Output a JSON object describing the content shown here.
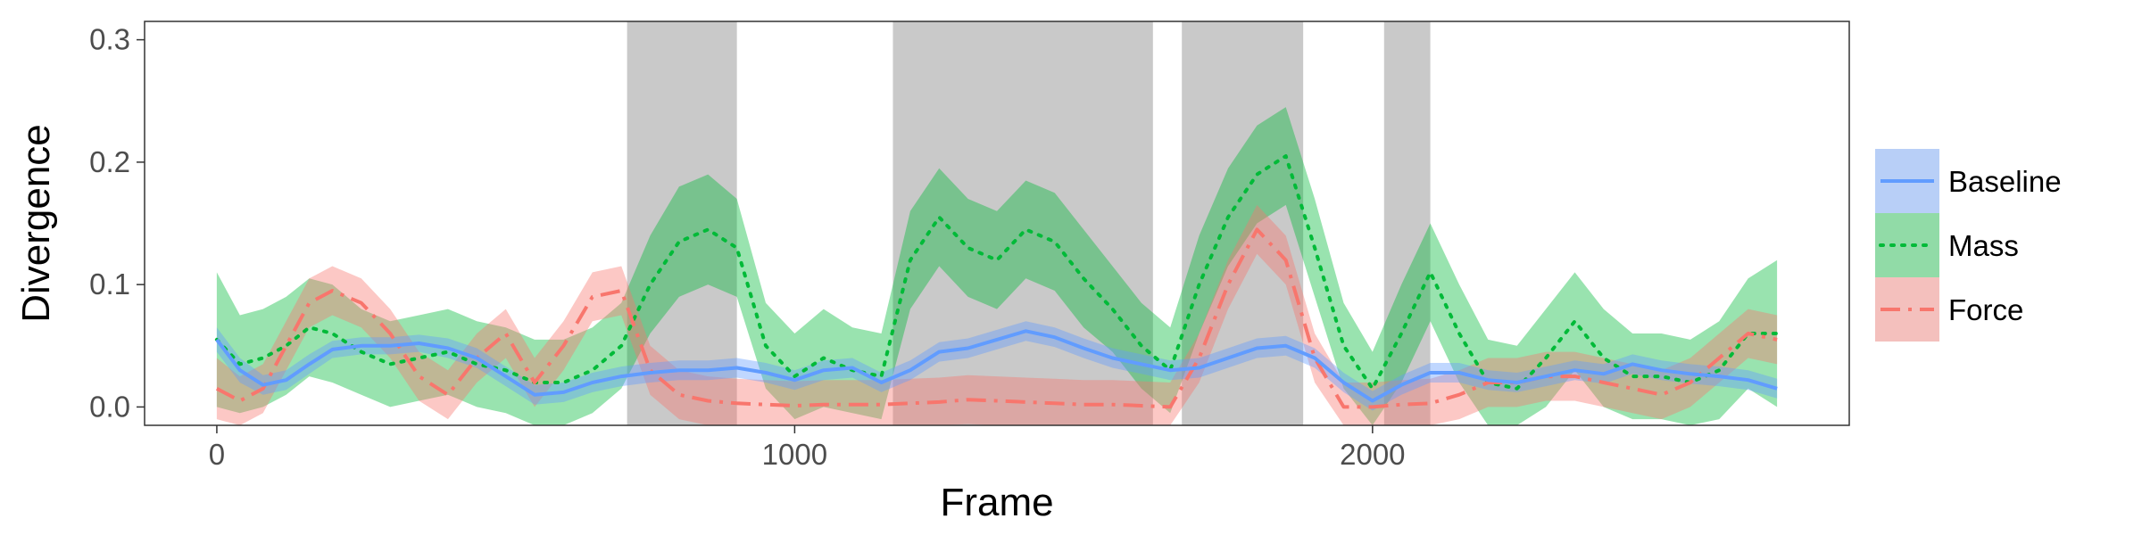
{
  "chart_data": {
    "type": "line",
    "xlabel": "Frame",
    "ylabel": "Divergence",
    "xlim": [
      -125,
      2825
    ],
    "ylim": [
      -0.015,
      0.315
    ],
    "x_ticks": [
      0,
      1000,
      2000
    ],
    "x_tick_labels": [
      "0",
      "1000",
      "2000"
    ],
    "y_ticks": [
      0.0,
      0.1,
      0.2,
      0.3
    ],
    "y_tick_labels": [
      "0.0",
      "0.1",
      "0.2",
      "0.3"
    ],
    "grid": false,
    "legend_position": "right",
    "shaded_regions": [
      [
        710,
        900
      ],
      [
        1170,
        1620
      ],
      [
        1670,
        1880
      ],
      [
        2020,
        2100
      ]
    ],
    "series": [
      {
        "name": "Baseline",
        "color": "#619cff",
        "dash": "solid",
        "x": [
          0,
          40,
          80,
          120,
          160,
          200,
          250,
          300,
          350,
          400,
          450,
          500,
          550,
          600,
          650,
          700,
          750,
          800,
          850,
          900,
          950,
          1000,
          1050,
          1100,
          1150,
          1200,
          1250,
          1300,
          1350,
          1400,
          1450,
          1500,
          1550,
          1600,
          1650,
          1700,
          1750,
          1800,
          1850,
          1900,
          1950,
          2000,
          2050,
          2100,
          2150,
          2200,
          2250,
          2300,
          2350,
          2400,
          2450,
          2500,
          2550,
          2600,
          2650,
          2700
        ],
        "y": [
          0.055,
          0.03,
          0.018,
          0.022,
          0.035,
          0.047,
          0.05,
          0.05,
          0.052,
          0.048,
          0.04,
          0.025,
          0.01,
          0.012,
          0.02,
          0.025,
          0.028,
          0.03,
          0.03,
          0.032,
          0.028,
          0.022,
          0.03,
          0.032,
          0.02,
          0.03,
          0.045,
          0.048,
          0.055,
          0.062,
          0.057,
          0.048,
          0.04,
          0.035,
          0.03,
          0.032,
          0.04,
          0.048,
          0.05,
          0.04,
          0.02,
          0.005,
          0.018,
          0.028,
          0.028,
          0.022,
          0.02,
          0.025,
          0.03,
          0.027,
          0.035,
          0.03,
          0.027,
          0.025,
          0.022,
          0.015
        ],
        "lower": [
          0.045,
          0.02,
          0.01,
          0.014,
          0.027,
          0.04,
          0.043,
          0.043,
          0.045,
          0.04,
          0.032,
          0.017,
          0.002,
          0.004,
          0.012,
          0.017,
          0.02,
          0.022,
          0.022,
          0.024,
          0.02,
          0.014,
          0.022,
          0.024,
          0.012,
          0.022,
          0.037,
          0.04,
          0.047,
          0.054,
          0.049,
          0.04,
          0.032,
          0.027,
          0.022,
          0.024,
          0.032,
          0.04,
          0.042,
          0.032,
          0.012,
          -0.003,
          0.01,
          0.02,
          0.02,
          0.014,
          0.012,
          0.017,
          0.022,
          0.019,
          0.027,
          0.022,
          0.019,
          0.017,
          0.014,
          0.007
        ],
        "upper": [
          0.065,
          0.04,
          0.026,
          0.03,
          0.043,
          0.054,
          0.057,
          0.057,
          0.059,
          0.056,
          0.048,
          0.033,
          0.018,
          0.02,
          0.028,
          0.033,
          0.036,
          0.038,
          0.038,
          0.04,
          0.036,
          0.03,
          0.038,
          0.04,
          0.028,
          0.038,
          0.053,
          0.056,
          0.063,
          0.07,
          0.065,
          0.056,
          0.048,
          0.043,
          0.038,
          0.04,
          0.048,
          0.056,
          0.058,
          0.048,
          0.028,
          0.013,
          0.026,
          0.036,
          0.036,
          0.03,
          0.028,
          0.033,
          0.038,
          0.035,
          0.043,
          0.038,
          0.035,
          0.033,
          0.03,
          0.023
        ]
      },
      {
        "name": "Mass",
        "color": "#00ba38",
        "dash": "dotted",
        "x": [
          0,
          40,
          80,
          120,
          160,
          200,
          250,
          300,
          350,
          400,
          450,
          500,
          550,
          600,
          650,
          700,
          750,
          800,
          850,
          900,
          950,
          1000,
          1050,
          1100,
          1150,
          1200,
          1250,
          1300,
          1350,
          1400,
          1450,
          1500,
          1550,
          1600,
          1650,
          1700,
          1750,
          1800,
          1850,
          1900,
          1950,
          2000,
          2050,
          2100,
          2150,
          2200,
          2250,
          2300,
          2350,
          2400,
          2450,
          2500,
          2550,
          2600,
          2650,
          2700
        ],
        "y": [
          0.055,
          0.035,
          0.04,
          0.05,
          0.065,
          0.06,
          0.045,
          0.035,
          0.04,
          0.045,
          0.035,
          0.03,
          0.02,
          0.02,
          0.03,
          0.05,
          0.1,
          0.135,
          0.145,
          0.13,
          0.05,
          0.025,
          0.04,
          0.03,
          0.025,
          0.12,
          0.155,
          0.13,
          0.12,
          0.145,
          0.135,
          0.105,
          0.08,
          0.05,
          0.03,
          0.1,
          0.155,
          0.19,
          0.205,
          0.13,
          0.05,
          0.015,
          0.06,
          0.11,
          0.06,
          0.02,
          0.015,
          0.04,
          0.07,
          0.04,
          0.025,
          0.025,
          0.02,
          0.03,
          0.06,
          0.06
        ],
        "lower": [
          0.0,
          -0.005,
          0.0,
          0.01,
          0.025,
          0.02,
          0.01,
          0.0,
          0.005,
          0.01,
          0.0,
          -0.005,
          -0.015,
          -0.015,
          -0.005,
          0.015,
          0.06,
          0.09,
          0.1,
          0.09,
          0.015,
          -0.01,
          0.0,
          -0.005,
          -0.01,
          0.08,
          0.115,
          0.09,
          0.08,
          0.105,
          0.095,
          0.065,
          0.045,
          0.015,
          -0.005,
          0.06,
          0.115,
          0.15,
          0.165,
          0.09,
          0.015,
          -0.015,
          0.02,
          0.07,
          0.02,
          -0.015,
          -0.02,
          0.0,
          0.03,
          0.0,
          -0.01,
          -0.01,
          -0.015,
          -0.01,
          0.015,
          0.0
        ],
        "upper": [
          0.11,
          0.075,
          0.08,
          0.09,
          0.105,
          0.1,
          0.08,
          0.07,
          0.075,
          0.08,
          0.07,
          0.065,
          0.055,
          0.055,
          0.065,
          0.085,
          0.14,
          0.18,
          0.19,
          0.17,
          0.085,
          0.06,
          0.08,
          0.065,
          0.06,
          0.16,
          0.195,
          0.17,
          0.16,
          0.185,
          0.175,
          0.145,
          0.115,
          0.085,
          0.065,
          0.14,
          0.195,
          0.23,
          0.245,
          0.17,
          0.085,
          0.045,
          0.1,
          0.15,
          0.1,
          0.055,
          0.05,
          0.08,
          0.11,
          0.08,
          0.06,
          0.06,
          0.055,
          0.07,
          0.105,
          0.12
        ]
      },
      {
        "name": "Force",
        "color": "#f8766d",
        "dash": "dashdot",
        "x": [
          0,
          40,
          80,
          120,
          160,
          200,
          250,
          300,
          350,
          400,
          450,
          500,
          550,
          600,
          650,
          700,
          750,
          800,
          850,
          900,
          950,
          1000,
          1050,
          1100,
          1150,
          1200,
          1250,
          1300,
          1350,
          1400,
          1450,
          1500,
          1550,
          1600,
          1650,
          1700,
          1750,
          1800,
          1850,
          1900,
          1950,
          2000,
          2050,
          2100,
          2150,
          2200,
          2250,
          2300,
          2350,
          2400,
          2450,
          2500,
          2550,
          2600,
          2650,
          2700
        ],
        "y": [
          0.015,
          0.005,
          0.015,
          0.05,
          0.085,
          0.095,
          0.085,
          0.06,
          0.025,
          0.01,
          0.04,
          0.06,
          0.02,
          0.05,
          0.09,
          0.095,
          0.03,
          0.01,
          0.005,
          0.003,
          0.002,
          0.001,
          0.002,
          0.002,
          0.002,
          0.003,
          0.004,
          0.006,
          0.005,
          0.004,
          0.003,
          0.002,
          0.002,
          0.001,
          0.0,
          0.04,
          0.1,
          0.145,
          0.12,
          0.04,
          0.0,
          0.0,
          0.002,
          0.003,
          0.01,
          0.02,
          0.02,
          0.025,
          0.025,
          0.02,
          0.015,
          0.01,
          0.02,
          0.04,
          0.06,
          0.055
        ],
        "lower": [
          -0.01,
          -0.015,
          -0.005,
          0.03,
          0.065,
          0.075,
          0.065,
          0.04,
          0.005,
          -0.01,
          0.02,
          0.04,
          0.0,
          0.03,
          0.07,
          0.075,
          0.01,
          -0.01,
          -0.015,
          -0.015,
          -0.015,
          -0.015,
          -0.015,
          -0.015,
          -0.015,
          -0.015,
          -0.015,
          -0.014,
          -0.015,
          -0.015,
          -0.015,
          -0.015,
          -0.015,
          -0.015,
          -0.015,
          0.02,
          0.08,
          0.125,
          0.1,
          0.02,
          -0.015,
          -0.015,
          -0.015,
          -0.015,
          -0.01,
          0.0,
          0.0,
          0.005,
          0.005,
          0.0,
          -0.005,
          -0.01,
          0.0,
          0.02,
          0.04,
          0.035
        ],
        "upper": [
          0.04,
          0.025,
          0.035,
          0.07,
          0.105,
          0.115,
          0.105,
          0.08,
          0.045,
          0.03,
          0.06,
          0.08,
          0.04,
          0.07,
          0.11,
          0.115,
          0.05,
          0.03,
          0.025,
          0.023,
          0.022,
          0.021,
          0.022,
          0.022,
          0.022,
          0.023,
          0.024,
          0.026,
          0.025,
          0.024,
          0.023,
          0.022,
          0.022,
          0.021,
          0.02,
          0.06,
          0.12,
          0.165,
          0.14,
          0.06,
          0.02,
          0.02,
          0.022,
          0.023,
          0.03,
          0.04,
          0.04,
          0.045,
          0.045,
          0.04,
          0.035,
          0.03,
          0.04,
          0.06,
          0.08,
          0.075
        ]
      }
    ]
  }
}
